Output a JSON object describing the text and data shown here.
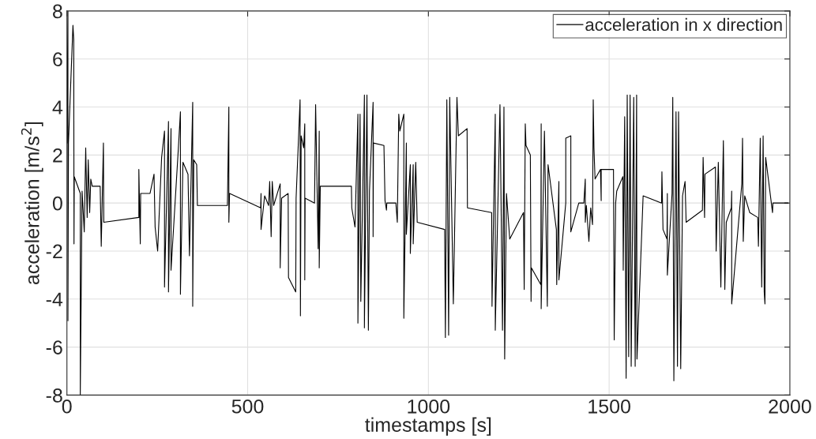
{
  "chart_data": {
    "type": "line",
    "xlabel": "timestamps [s]",
    "ylabel": "acceleration [m/s$^{2}$]",
    "xlim": [
      0,
      2000
    ],
    "ylim": [
      -8,
      8
    ],
    "xticks": [
      0,
      500,
      1000,
      1500,
      2000
    ],
    "yticks": [
      -8,
      -6,
      -4,
      -2,
      0,
      2,
      4,
      6,
      8
    ],
    "grid": true,
    "legend": "top right",
    "line_style": "solid",
    "marker": "none",
    "series": [
      {
        "name": "acceleration in x direction",
        "color": "#000000",
        "x": [
          0,
          2.8,
          2.8,
          4.3,
          16.7,
          18.9,
          19.6,
          20.3,
          37,
          37,
          42,
          48,
          52,
          56,
          59,
          63,
          66,
          70,
          92,
          95,
          101,
          102,
          199,
          199,
          203,
          204,
          230,
          241,
          244,
          251,
          262,
          270,
          270,
          281,
          281,
          288,
          288,
          308,
          314,
          314,
          321,
          335,
          339,
          348,
          348,
          351,
          359,
          361,
          444,
          448,
          448,
          450,
          536,
          537,
          537,
          547,
          558,
          561,
          565,
          568,
          572,
          590,
          590,
          594,
          612,
          613,
          633,
          634,
          645,
          646,
          648,
          655,
          658,
          658,
          659,
          685,
          688,
          695,
          698,
          698,
          701,
          787,
          788,
          797,
          805,
          805,
          811,
          813,
          823,
          823,
          830,
          834,
          837,
          847,
          847,
          848,
          877,
          880,
          884,
          885,
          910,
          914,
          918,
          921,
          932,
          932,
          939,
          939,
          950,
          950,
          958,
          958,
          965,
          969,
          1045,
          1047,
          1051,
          1056,
          1059,
          1069,
          1079,
          1083,
          1107,
          1108,
          1175,
          1176,
          1185,
          1185,
          1198,
          1205,
          1209,
          1211,
          1216,
          1225,
          1263,
          1265,
          1268,
          1270,
          1282,
          1284,
          1285,
          1311,
          1312,
          1312,
          1321,
          1329,
          1331,
          1354,
          1355,
          1361,
          1361,
          1380,
          1380,
          1394,
          1394,
          1416,
          1430,
          1434,
          1434,
          1437,
          1444,
          1449,
          1454,
          1456,
          1458,
          1461,
          1476,
          1478,
          1478,
          1512,
          1514,
          1518,
          1521,
          1538,
          1539,
          1543,
          1547,
          1550,
          1554,
          1558,
          1561,
          1568,
          1572,
          1576,
          1577,
          1594,
          1645,
          1646,
          1649,
          1660,
          1661,
          1661,
          1674,
          1676,
          1679,
          1685,
          1689,
          1692,
          1698,
          1703,
          1710,
          1713,
          1758,
          1760,
          1764,
          1765,
          1794,
          1796,
          1802,
          1809,
          1816,
          1820,
          1824,
          1838,
          1839,
          1839,
          1867,
          1869,
          1871,
          1875,
          1889,
          1911,
          1913,
          1918,
          1922,
          1926,
          1929,
          1931,
          1933,
          1952,
          1953,
          1984,
          1995
        ],
        "values": [
          2.5,
          8,
          -4.9,
          2.5,
          7.4,
          6.8,
          -1.7,
          1.1,
          0.4,
          -8,
          0.5,
          -1.2,
          2.3,
          -0.6,
          1.8,
          -0.4,
          1.0,
          0.7,
          0.7,
          -1.8,
          2.5,
          -0.8,
          -0.6,
          1.4,
          -1.7,
          0.4,
          0.4,
          1.2,
          -1.0,
          -2.0,
          1.9,
          3.0,
          -3.5,
          3.4,
          -3.7,
          3.1,
          -2.8,
          2.2,
          3.8,
          -3.8,
          1.7,
          1.2,
          -2.2,
          4.2,
          -4.3,
          1.8,
          1.6,
          -0.1,
          -0.1,
          4.0,
          -0.8,
          0.4,
          -0.2,
          0.4,
          -1.1,
          0.3,
          -0.1,
          0.9,
          -1.4,
          0.9,
          -0.1,
          0.8,
          -2.7,
          0.2,
          0.4,
          -3.1,
          -3.7,
          0.2,
          4.3,
          -4.7,
          2.8,
          2.3,
          3.3,
          -3.2,
          0.2,
          0.0,
          4.1,
          -1.9,
          3.0,
          -2.7,
          0.7,
          0.7,
          -0.2,
          -1.0,
          3.7,
          -5.0,
          3.7,
          -4.1,
          4.5,
          -5.2,
          4.5,
          -5.3,
          0.5,
          4.2,
          -1.4,
          2.5,
          2.4,
          0.1,
          -0.3,
          0.0,
          0.0,
          -0.8,
          3.7,
          3.0,
          3.7,
          -4.8,
          2.5,
          -1.3,
          1.6,
          -2.1,
          1.6,
          -1.7,
          1.7,
          -0.8,
          -1.1,
          -5.6,
          4.3,
          -5.5,
          4.4,
          -4.2,
          4.4,
          2.8,
          3.1,
          -0.2,
          -0.4,
          -4.3,
          3.7,
          -5.3,
          4.1,
          -5.3,
          4.0,
          -6.5,
          0.4,
          -1.5,
          -0.4,
          -3.6,
          3.3,
          2.4,
          2.0,
          -4.1,
          -2.7,
          -3.4,
          3.3,
          -4.4,
          3.0,
          -4.3,
          1.6,
          -1.1,
          -3.4,
          0.9,
          -3.2,
          0.0,
          2.7,
          2.8,
          -1.2,
          0.0,
          0.0,
          1.0,
          -0.8,
          -0.1,
          -1.6,
          -0.2,
          -0.9,
          4.3,
          2.3,
          1.0,
          1.4,
          0.1,
          1.4,
          1.4,
          -5.7,
          0.0,
          0.5,
          1.1,
          -2.8,
          3.6,
          -7.3,
          4.5,
          -6.4,
          4.5,
          -6.8,
          4.4,
          -6.8,
          4.5,
          -6.5,
          0.3,
          0.0,
          1.3,
          -1.1,
          -1.5,
          0.4,
          -3.0,
          0.4,
          4.4,
          -7.4,
          3.8,
          -6.8,
          3.8,
          -6.9,
          0.3,
          0.9,
          -0.8,
          -0.3,
          1.9,
          -0.6,
          1.2,
          1.5,
          -2.0,
          1.7,
          -3.5,
          2.6,
          -3.6,
          -0.8,
          -0.2,
          0.5,
          -4.2,
          0.8,
          2.7,
          -1.6,
          0.3,
          -0.4,
          -0.6,
          -1.8,
          2.7,
          -3.5,
          2.8,
          -3.7,
          -4.2,
          1.9,
          -0.4,
          0.0,
          0.0,
          0.0
        ]
      }
    ]
  }
}
